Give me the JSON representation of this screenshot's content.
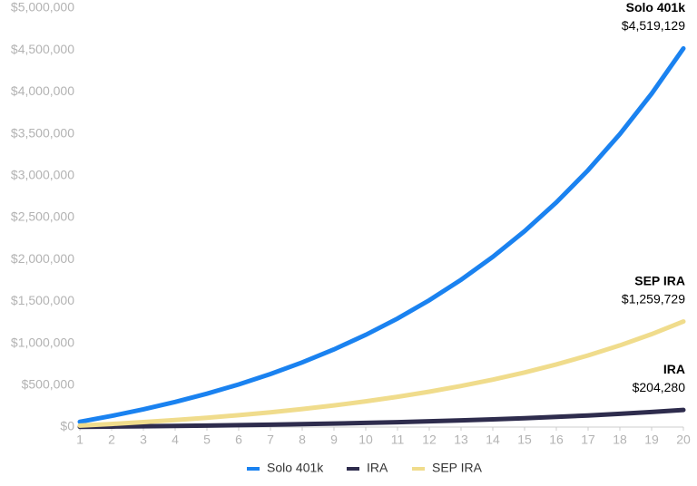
{
  "chart_data": {
    "type": "line",
    "x": [
      1,
      2,
      3,
      4,
      5,
      6,
      7,
      8,
      9,
      10,
      11,
      12,
      13,
      14,
      15,
      16,
      17,
      18,
      19,
      20
    ],
    "xlim": [
      1,
      20
    ],
    "xticks": [
      1,
      2,
      3,
      4,
      5,
      6,
      7,
      8,
      9,
      10,
      11,
      12,
      13,
      14,
      15,
      16,
      17,
      18,
      19,
      20
    ],
    "ylim": [
      0,
      5000000
    ],
    "yticks": [
      {
        "value": 0,
        "label": "$0"
      },
      {
        "value": 500000,
        "label": "$500,000"
      },
      {
        "value": 1000000,
        "label": "$1,000,000"
      },
      {
        "value": 1500000,
        "label": "$1,500,000"
      },
      {
        "value": 2000000,
        "label": "$2,000,000"
      },
      {
        "value": 2500000,
        "label": "$2,500,000"
      },
      {
        "value": 3000000,
        "label": "$3,000,000"
      },
      {
        "value": 3500000,
        "label": "$3,500,000"
      },
      {
        "value": 4000000,
        "label": "$4,000,000"
      },
      {
        "value": 4500000,
        "label": "$4,500,000"
      },
      {
        "value": 5000000,
        "label": "$5,000,000"
      }
    ],
    "grid": false,
    "legend": "bottom",
    "series": [
      {
        "name": "Solo 401k",
        "color": "#1a82f0",
        "end_label": "$4,519,129",
        "values": [
          62722,
          132971,
          211624,
          299748,
          398473,
          508989,
          632803,
          771481,
          926797,
          1100706,
          1295523,
          1513682,
          1758059,
          2031747,
          2338276,
          2681540,
          3066082,
          3496770,
          3979080,
          4519129
        ]
      },
      {
        "name": "IRA",
        "color": "#2e2c4d",
        "end_label": "$204,280",
        "values": [
          2835,
          6010,
          9565,
          13548,
          18011,
          23006,
          28602,
          34871,
          41890,
          49751,
          58557,
          68418,
          79462,
          91834,
          105689,
          121205,
          138586,
          158051,
          179851,
          204280
        ]
      },
      {
        "name": "SEP IRA",
        "color": "#f0dc8c",
        "end_label": "$1,259,729",
        "values": [
          17484,
          37066,
          58991,
          83556,
          111078,
          141883,
          176398,
          215053,
          258347,
          306827,
          361133,
          421941,
          490059,
          566360,
          651804,
          747494,
          854687,
          974735,
          1109186,
          1259729
        ]
      }
    ]
  }
}
